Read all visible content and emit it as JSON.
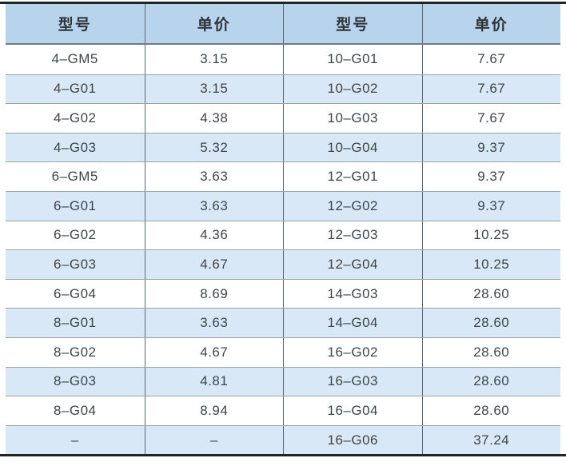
{
  "table": {
    "headers": [
      "型号",
      "单价",
      "型号",
      "单价"
    ],
    "rows": [
      [
        "4–GM5",
        "3.15",
        "10–G01",
        "7.67"
      ],
      [
        "4–G01",
        "3.15",
        "10–G02",
        "7.67"
      ],
      [
        "4–G02",
        "4.38",
        "10–G03",
        "7.67"
      ],
      [
        "4–G03",
        "5.32",
        "10–G04",
        "9.37"
      ],
      [
        "6–GM5",
        "3.63",
        "12–G01",
        "9.37"
      ],
      [
        "6–G01",
        "3.63",
        "12–G02",
        "9.37"
      ],
      [
        "6–G02",
        "4.36",
        "12–G03",
        "10.25"
      ],
      [
        "6–G03",
        "4.67",
        "12–G04",
        "10.25"
      ],
      [
        "6–G04",
        "8.69",
        "14–G03",
        "28.60"
      ],
      [
        "8–G01",
        "3.63",
        "14–G04",
        "28.60"
      ],
      [
        "8–G02",
        "4.67",
        "16–G02",
        "28.60"
      ],
      [
        "8–G03",
        "4.81",
        "16–G03",
        "28.60"
      ],
      [
        "8–G04",
        "8.94",
        "16–G04",
        "28.60"
      ],
      [
        "–",
        "–",
        "16–G06",
        "37.24"
      ]
    ]
  },
  "colors": {
    "header_bg": "#b7d4ec",
    "stripe_bg": "#d9e8f6",
    "rule": "#232323",
    "vline": "#5c6873",
    "hline": "#9aa3ab",
    "header_border": "#6f7a84",
    "header_text": "#2e3338",
    "cell_text": "#3f4449"
  }
}
